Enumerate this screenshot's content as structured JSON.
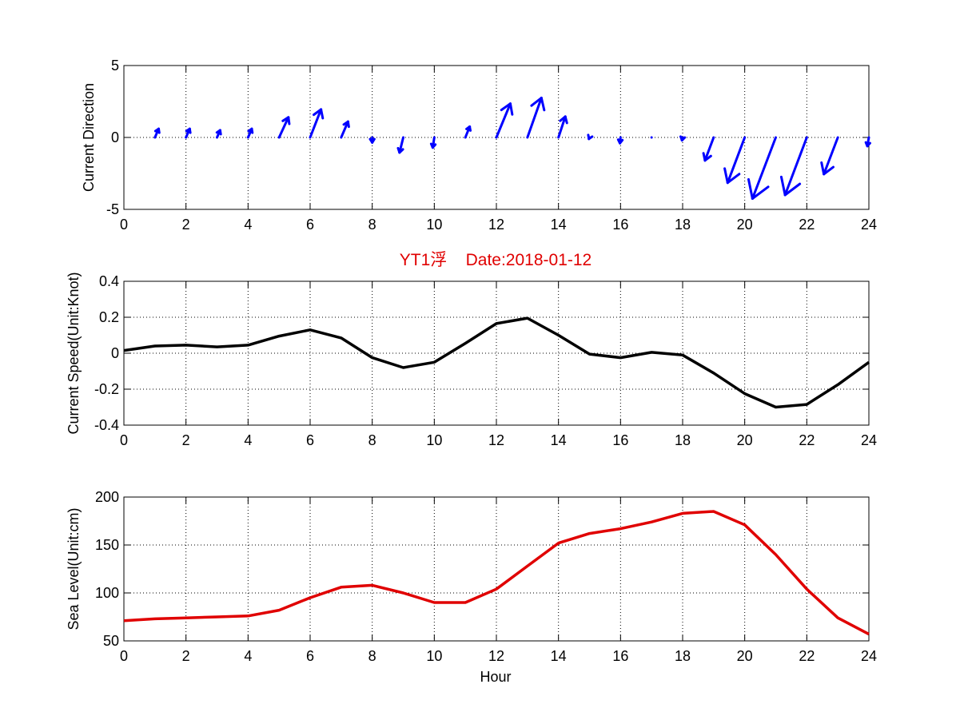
{
  "figure": {
    "title": "YT1浮    Date:2018-01-12",
    "title_color": "#e00000",
    "xlabel": "Hour"
  },
  "chart_data": [
    {
      "type": "quiver",
      "name": "direction",
      "ylabel": "Current Direction",
      "xlim": [
        0,
        24
      ],
      "ylim": [
        -5,
        5
      ],
      "xticks": [
        0,
        2,
        4,
        6,
        8,
        10,
        12,
        14,
        16,
        18,
        20,
        22,
        24
      ],
      "yticks": [
        -5,
        0,
        5
      ],
      "grid": true,
      "color": "#0000ff",
      "vectors": [
        {
          "x": 1,
          "u": 0.12,
          "v": 0.6
        },
        {
          "x": 2,
          "u": 0.12,
          "v": 0.6
        },
        {
          "x": 3,
          "u": 0.1,
          "v": 0.5
        },
        {
          "x": 4,
          "u": 0.12,
          "v": 0.6
        },
        {
          "x": 5,
          "u": 0.3,
          "v": 1.4
        },
        {
          "x": 6,
          "u": 0.35,
          "v": 1.95
        },
        {
          "x": 7,
          "u": 0.22,
          "v": 1.1
        },
        {
          "x": 8,
          "u": 0.0,
          "v": -0.35
        },
        {
          "x": 9,
          "u": -0.12,
          "v": -1.05
        },
        {
          "x": 10,
          "u": -0.05,
          "v": -0.7
        },
        {
          "x": 11,
          "u": 0.14,
          "v": 0.75
        },
        {
          "x": 12,
          "u": 0.45,
          "v": 2.35
        },
        {
          "x": 13,
          "u": 0.45,
          "v": 2.75
        },
        {
          "x": 14,
          "u": 0.22,
          "v": 1.45
        },
        {
          "x": 15,
          "u": -0.02,
          "v": -0.1
        },
        {
          "x": 16,
          "u": -0.02,
          "v": -0.4
        },
        {
          "x": 17,
          "u": 0.0,
          "v": 0.0
        },
        {
          "x": 18,
          "u": -0.02,
          "v": -0.2
        },
        {
          "x": 19,
          "u": -0.28,
          "v": -1.6
        },
        {
          "x": 20,
          "u": -0.55,
          "v": -3.15
        },
        {
          "x": 21,
          "u": -0.75,
          "v": -4.25
        },
        {
          "x": 22,
          "u": -0.7,
          "v": -4.0
        },
        {
          "x": 23,
          "u": -0.45,
          "v": -2.55
        },
        {
          "x": 24,
          "u": -0.05,
          "v": -0.6
        }
      ]
    },
    {
      "type": "line",
      "name": "speed",
      "ylabel": "Current Speed(Unit:Knot)",
      "xlim": [
        0,
        24
      ],
      "ylim": [
        -0.4,
        0.4
      ],
      "xticks": [
        0,
        2,
        4,
        6,
        8,
        10,
        12,
        14,
        16,
        18,
        20,
        22,
        24
      ],
      "yticks": [
        -0.4,
        -0.2,
        0,
        0.2,
        0.4
      ],
      "grid": true,
      "color": "#000000",
      "x": [
        0,
        1,
        2,
        3,
        4,
        5,
        6,
        7,
        8,
        9,
        10,
        11,
        12,
        13,
        14,
        15,
        16,
        17,
        18,
        19,
        20,
        21,
        22,
        23,
        24
      ],
      "y": [
        0.015,
        0.04,
        0.045,
        0.035,
        0.045,
        0.095,
        0.13,
        0.085,
        -0.025,
        -0.08,
        -0.05,
        0.055,
        0.165,
        0.195,
        0.1,
        -0.005,
        -0.025,
        0.005,
        -0.01,
        -0.11,
        -0.225,
        -0.3,
        -0.285,
        -0.175,
        -0.05
      ]
    },
    {
      "type": "line",
      "name": "sea-level",
      "ylabel": "Sea Level(Unit:cm)",
      "xlim": [
        0,
        24
      ],
      "ylim": [
        50,
        200
      ],
      "xticks": [
        0,
        2,
        4,
        6,
        8,
        10,
        12,
        14,
        16,
        18,
        20,
        22,
        24
      ],
      "yticks": [
        50,
        100,
        150,
        200
      ],
      "grid": true,
      "color": "#e00000",
      "x": [
        0,
        1,
        2,
        3,
        4,
        5,
        6,
        7,
        8,
        9,
        10,
        11,
        12,
        13,
        14,
        15,
        16,
        17,
        18,
        19,
        20,
        21,
        22,
        23,
        24
      ],
      "y": [
        71,
        73,
        74,
        75,
        76,
        82,
        95,
        106,
        108,
        100,
        90,
        90,
        104,
        128,
        152,
        162,
        167,
        174,
        183,
        185,
        171,
        140,
        104,
        74,
        57
      ]
    }
  ]
}
